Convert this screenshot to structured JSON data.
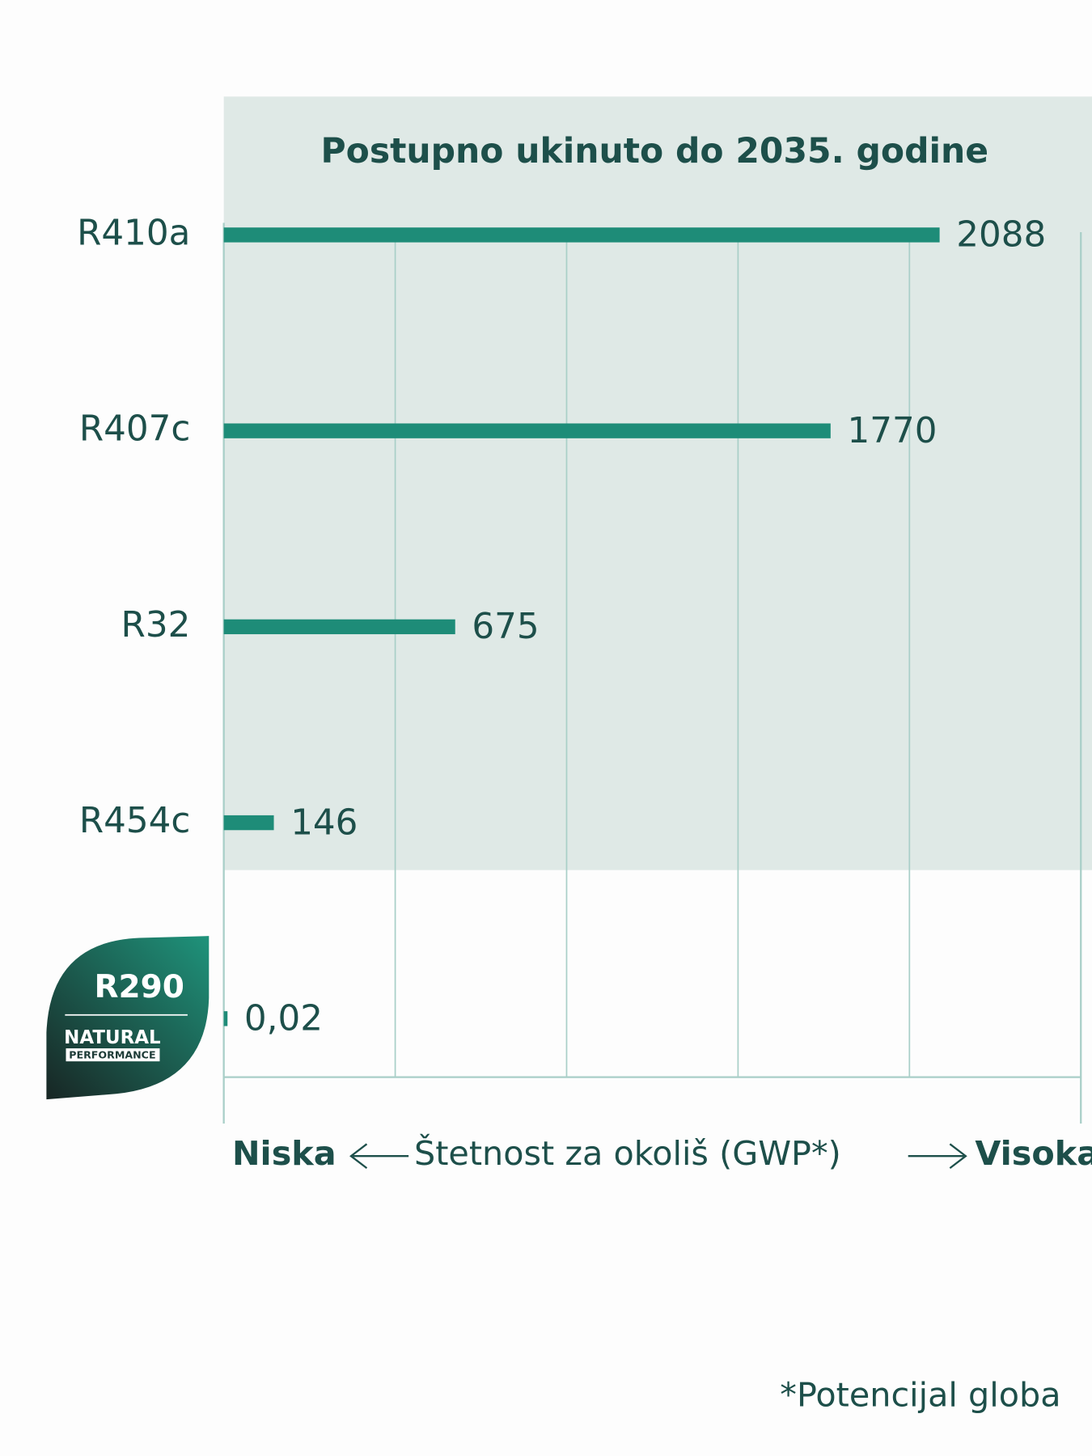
{
  "chart_data": {
    "type": "hbar",
    "title": "Postupno ukinuto do 2035. godine",
    "categories": [
      "R410a",
      "R407c",
      "R32",
      "R454c",
      "R290"
    ],
    "values": [
      2088,
      1770,
      675,
      146,
      0.02
    ],
    "value_labels": [
      null,
      null,
      null,
      null,
      "0,02"
    ],
    "color": "#1e8c78",
    "xlim": [
      0,
      2500
    ],
    "x_label_low": "Niska",
    "x_label": "Štetnost za okoliš (GWP*)",
    "x_label_high": "Visoka",
    "badge_text": [
      "NATURAL",
      "PERFORMANCE"
    ],
    "footnote": "*Potencijal globa"
  }
}
